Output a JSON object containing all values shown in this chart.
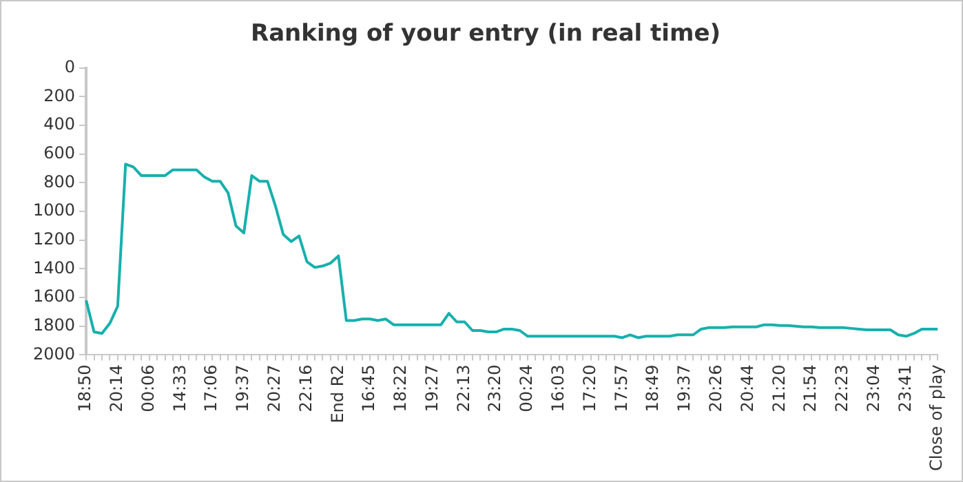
{
  "chart_data": {
    "type": "line",
    "title": "Ranking of your entry (in real time)",
    "categories": [
      "18:50",
      null,
      null,
      null,
      "20:14",
      null,
      null,
      null,
      "00:06",
      null,
      null,
      null,
      "14:33",
      null,
      null,
      null,
      "17:06",
      null,
      null,
      null,
      "19:37",
      null,
      null,
      null,
      "20:27",
      null,
      null,
      null,
      "22:16",
      null,
      null,
      null,
      "End R2",
      null,
      null,
      null,
      "16:45",
      null,
      null,
      null,
      "18:22",
      null,
      null,
      null,
      "19:27",
      null,
      null,
      null,
      "22:13",
      null,
      null,
      null,
      "23:20",
      null,
      null,
      null,
      "00:24",
      null,
      null,
      null,
      "16:03",
      null,
      null,
      null,
      "17:20",
      null,
      null,
      null,
      "17:57",
      null,
      null,
      null,
      "18:49",
      null,
      null,
      null,
      "19:37",
      null,
      null,
      null,
      "20:26",
      null,
      null,
      null,
      "20:44",
      null,
      null,
      null,
      "21:20",
      null,
      null,
      null,
      "21:54",
      null,
      null,
      null,
      "22:23",
      null,
      null,
      null,
      "23:04",
      null,
      null,
      null,
      "23:41",
      null,
      null,
      null,
      "Close of play"
    ],
    "series": [
      {
        "color": "#17b0ad",
        "values": [
          1620,
          1840,
          1850,
          1780,
          1660,
          670,
          690,
          750,
          750,
          750,
          750,
          710,
          710,
          710,
          710,
          760,
          790,
          790,
          870,
          1100,
          1150,
          750,
          790,
          790,
          960,
          1160,
          1210,
          1170,
          1350,
          1390,
          1380,
          1360,
          1310,
          1760,
          1760,
          1750,
          1750,
          1760,
          1750,
          1790,
          1790,
          1790,
          1790,
          1790,
          1790,
          1790,
          1710,
          1770,
          1770,
          1830,
          1830,
          1840,
          1840,
          1820,
          1820,
          1830,
          1870,
          1870,
          1870,
          1870,
          1870,
          1870,
          1870,
          1870,
          1870,
          1870,
          1870,
          1870,
          1880,
          1860,
          1880,
          1870,
          1870,
          1870,
          1870,
          1860,
          1860,
          1860,
          1820,
          1810,
          1810,
          1810,
          1805,
          1805,
          1805,
          1805,
          1790,
          1790,
          1795,
          1795,
          1800,
          1805,
          1805,
          1810,
          1810,
          1810,
          1810,
          1815,
          1820,
          1825,
          1825,
          1825,
          1825,
          1860,
          1870,
          1850,
          1820,
          1820,
          1820
        ]
      }
    ],
    "ylim": [
      2000,
      0
    ],
    "yticks": [
      0,
      200,
      400,
      600,
      800,
      1000,
      1200,
      1400,
      1600,
      1800,
      2000
    ],
    "grid": false,
    "legend": false,
    "marker": "none",
    "line_style": "solid"
  }
}
